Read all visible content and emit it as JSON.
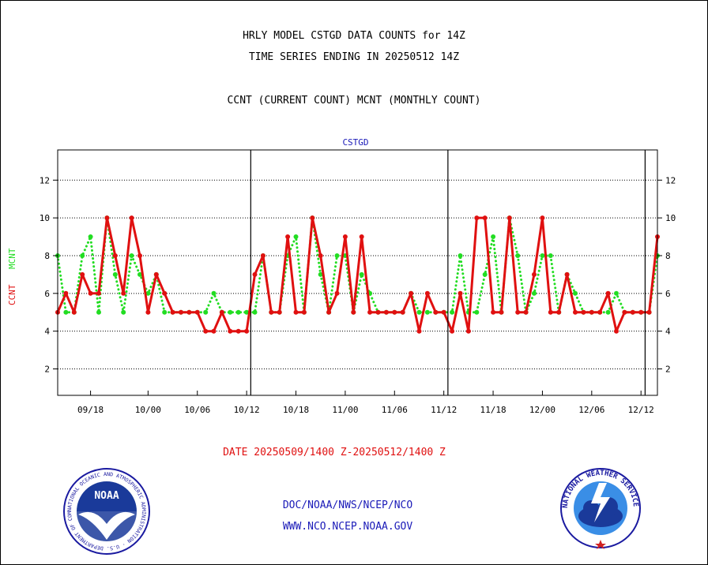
{
  "header": {
    "title_line1": "HRLY MODEL CSTGD DATA COUNTS for 14Z",
    "title_line2": "TIME SERIES ENDING IN 20250512 14Z",
    "subtitle": "CCNT (CURRENT COUNT) MCNT (MONTHLY COUNT)"
  },
  "footer": {
    "date_range": "DATE 20250509/1400 Z-20250512/1400 Z",
    "agency": "DOC/NOAA/NWS/NCEP/NCO",
    "website": "WWW.NCO.NCEP.NOAA.GOV"
  },
  "logos": {
    "noaa": {
      "center_text": "NOAA",
      "ring_text": "NATIONAL OCEANIC AND ATMOSPHERIC ADMINISTRATION · U.S. DEPARTMENT OF COMMERCE"
    },
    "nws": {
      "ring_text": "NATIONAL WEATHER SERVICE"
    }
  },
  "colors": {
    "ccnt": "#e01010",
    "mcnt": "#22dd22",
    "label_blue": "#1a1ab8",
    "axis": "#000000"
  },
  "chart_data": {
    "type": "line",
    "title": "CSTGD",
    "ylabel_ccnt": "CCNT",
    "ylabel_mcnt": "MCNT",
    "ylim": [
      0.6,
      13.6
    ],
    "yticks": [
      2,
      4,
      6,
      8,
      10,
      12
    ],
    "xticks": [
      "09/18",
      "10/00",
      "10/06",
      "10/12",
      "10/18",
      "11/00",
      "11/06",
      "11/12",
      "11/18",
      "12/00",
      "12/06",
      "12/12"
    ],
    "day_dividers_after_hour": [
      "10/12",
      "11/12",
      "12/12"
    ],
    "x": [
      "09/14",
      "09/15",
      "09/16",
      "09/17",
      "09/18",
      "09/19",
      "09/20",
      "09/21",
      "09/22",
      "09/23",
      "09/24",
      "10/00",
      "10/01",
      "10/02",
      "10/03",
      "10/04",
      "10/05",
      "10/06",
      "10/07",
      "10/08",
      "10/09",
      "10/10",
      "10/11",
      "10/12",
      "10/13",
      "10/14",
      "10/15",
      "10/16",
      "10/17",
      "10/18",
      "10/19",
      "10/20",
      "10/21",
      "10/22",
      "10/23",
      "11/00",
      "11/01",
      "11/02",
      "11/03",
      "11/04",
      "11/05",
      "11/06",
      "11/07",
      "11/08",
      "11/09",
      "11/10",
      "11/11",
      "11/12",
      "11/13",
      "11/14",
      "11/15",
      "11/16",
      "11/17",
      "11/18",
      "11/19",
      "11/20",
      "11/21",
      "11/22",
      "11/23",
      "12/00",
      "12/01",
      "12/02",
      "12/03",
      "12/04",
      "12/05",
      "12/06",
      "12/07",
      "12/08",
      "12/09",
      "12/10",
      "12/11",
      "12/12",
      "12/13",
      "12/14"
    ],
    "series": [
      {
        "name": "CCNT",
        "color": "#e01010",
        "style": "solid",
        "values": [
          5,
          6,
          5,
          7,
          6,
          6,
          10,
          8,
          6,
          10,
          8,
          5,
          7,
          6,
          5,
          5,
          5,
          5,
          4,
          4,
          5,
          4,
          4,
          4,
          7,
          8,
          5,
          5,
          9,
          5,
          5,
          10,
          8,
          5,
          6,
          9,
          5,
          9,
          5,
          5,
          5,
          5,
          5,
          6,
          4,
          6,
          5,
          5,
          4,
          6,
          4,
          10,
          10,
          5,
          5,
          10,
          5,
          5,
          7,
          10,
          5,
          5,
          7,
          5,
          5,
          5,
          5,
          6,
          4,
          5,
          5,
          5,
          5,
          9
        ]
      },
      {
        "name": "MCNT",
        "color": "#22dd22",
        "style": "dotted",
        "values": [
          8,
          5,
          5,
          8,
          9,
          5,
          10,
          7,
          5,
          8,
          7,
          6,
          7,
          5,
          5,
          5,
          5,
          5,
          5,
          6,
          5,
          5,
          5,
          5,
          5,
          8,
          5,
          5,
          8,
          9,
          5,
          10,
          7,
          5,
          8,
          8,
          5,
          7,
          6,
          5,
          5,
          5,
          5,
          6,
          5,
          5,
          5,
          5,
          5,
          8,
          5,
          5,
          7,
          9,
          5,
          10,
          8,
          5,
          6,
          8,
          8,
          5,
          7,
          6,
          5,
          5,
          5,
          5,
          6,
          5,
          5,
          5,
          5,
          8
        ]
      }
    ]
  }
}
